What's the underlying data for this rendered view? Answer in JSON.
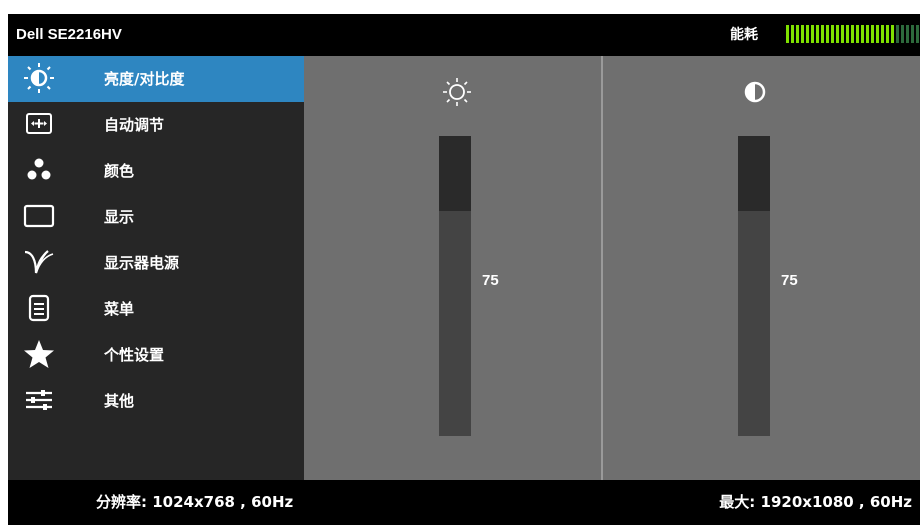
{
  "header": {
    "model": "Dell SE2216HV",
    "energy_label": "能耗",
    "energy_level": 0.78
  },
  "sidebar": {
    "items": [
      {
        "label": "亮度/对比度",
        "icon": "brightness-icon",
        "active": true
      },
      {
        "label": "自动调节",
        "icon": "auto-adjust-icon",
        "active": false
      },
      {
        "label": "颜色",
        "icon": "color-icon",
        "active": false
      },
      {
        "label": "显示",
        "icon": "display-icon",
        "active": false
      },
      {
        "label": "显示器电源",
        "icon": "power-icon",
        "active": false
      },
      {
        "label": "菜单",
        "icon": "menu-icon",
        "active": false
      },
      {
        "label": "个性设置",
        "icon": "star-icon",
        "active": false
      },
      {
        "label": "其他",
        "icon": "settings-icon",
        "active": false
      }
    ]
  },
  "main": {
    "brightness": {
      "icon": "sun-icon",
      "value": "75",
      "level": 0.75
    },
    "contrast": {
      "icon": "contrast-icon",
      "value": "75",
      "level": 0.75
    }
  },
  "footer": {
    "resolution": "分辨率: 1024x768 , 60Hz",
    "max": "最大: 1920x1080 , 60Hz"
  },
  "colors": {
    "accent": "#2e86c1",
    "meter_on": "#7fe000",
    "meter_off": "#2d6a3c"
  }
}
